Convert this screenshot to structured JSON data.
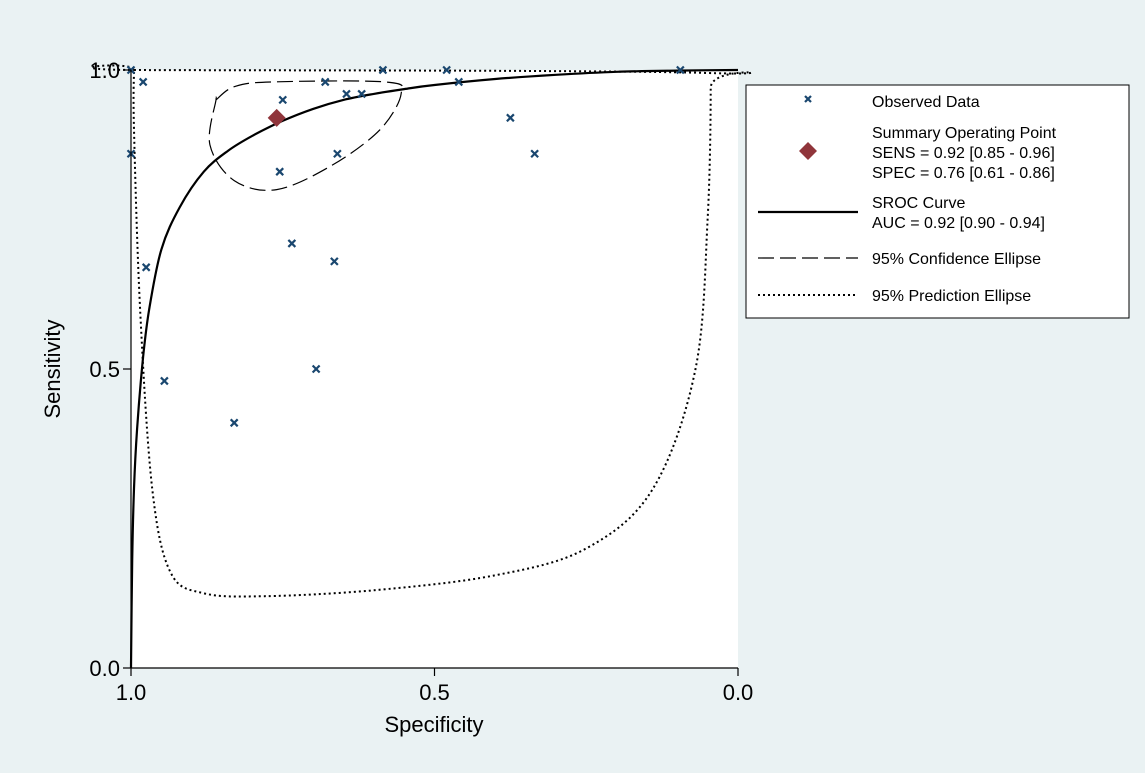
{
  "chart_data": {
    "type": "scatter",
    "xlabel": "Specificity",
    "ylabel": "Sensitivity",
    "xlim": [
      1.0,
      0.0
    ],
    "ylim": [
      0.0,
      1.0
    ],
    "x_axis_reversed": true,
    "x_ticks": [
      "1.0",
      "0.5",
      "0.0"
    ],
    "y_ticks": [
      "0.0",
      "0.5",
      "1.0"
    ],
    "grid": false,
    "legend_placement": "right",
    "colors": {
      "background": "#eaf2f3",
      "plot_area": "#ffffff",
      "observed_marker": "#1a476f",
      "summary_marker": "#90353b",
      "lines": "#000000"
    },
    "observed_data": [
      {
        "spec": 1.0,
        "sens": 1.0
      },
      {
        "spec": 0.98,
        "sens": 0.98
      },
      {
        "spec": 1.0,
        "sens": 0.86
      },
      {
        "spec": 0.975,
        "sens": 0.67
      },
      {
        "spec": 0.945,
        "sens": 0.48
      },
      {
        "spec": 0.83,
        "sens": 0.41
      },
      {
        "spec": 0.75,
        "sens": 0.95
      },
      {
        "spec": 0.755,
        "sens": 0.83
      },
      {
        "spec": 0.735,
        "sens": 0.71
      },
      {
        "spec": 0.695,
        "sens": 0.5
      },
      {
        "spec": 0.68,
        "sens": 0.98
      },
      {
        "spec": 0.66,
        "sens": 0.86
      },
      {
        "spec": 0.665,
        "sens": 0.68
      },
      {
        "spec": 0.645,
        "sens": 0.96
      },
      {
        "spec": 0.62,
        "sens": 0.96
      },
      {
        "spec": 0.585,
        "sens": 1.0
      },
      {
        "spec": 0.48,
        "sens": 1.0
      },
      {
        "spec": 0.46,
        "sens": 0.98
      },
      {
        "spec": 0.375,
        "sens": 0.92
      },
      {
        "spec": 0.335,
        "sens": 0.86
      },
      {
        "spec": 0.095,
        "sens": 1.0
      }
    ],
    "summary_point": {
      "spec": 0.76,
      "sens": 0.92
    },
    "sroc_curve": [
      {
        "spec": 1.0,
        "sens": 0.0
      },
      {
        "spec": 0.998,
        "sens": 0.18
      },
      {
        "spec": 0.995,
        "sens": 0.3
      },
      {
        "spec": 0.99,
        "sens": 0.4
      },
      {
        "spec": 0.98,
        "sens": 0.52
      },
      {
        "spec": 0.97,
        "sens": 0.6
      },
      {
        "spec": 0.95,
        "sens": 0.7
      },
      {
        "spec": 0.92,
        "sens": 0.77
      },
      {
        "spec": 0.88,
        "sens": 0.83
      },
      {
        "spec": 0.84,
        "sens": 0.865
      },
      {
        "spec": 0.8,
        "sens": 0.89
      },
      {
        "spec": 0.75,
        "sens": 0.915
      },
      {
        "spec": 0.7,
        "sens": 0.935
      },
      {
        "spec": 0.65,
        "sens": 0.95
      },
      {
        "spec": 0.6,
        "sens": 0.96
      },
      {
        "spec": 0.55,
        "sens": 0.968
      },
      {
        "spec": 0.5,
        "sens": 0.975
      },
      {
        "spec": 0.4,
        "sens": 0.985
      },
      {
        "spec": 0.3,
        "sens": 0.992
      },
      {
        "spec": 0.2,
        "sens": 0.997
      },
      {
        "spec": 0.1,
        "sens": 0.999
      },
      {
        "spec": 0.0,
        "sens": 1.0
      }
    ],
    "confidence_ellipse": [
      {
        "spec": 0.86,
        "sens": 0.95
      },
      {
        "spec": 0.83,
        "sens": 0.972
      },
      {
        "spec": 0.77,
        "sens": 0.98
      },
      {
        "spec": 0.58,
        "sens": 0.98
      },
      {
        "spec": 0.555,
        "sens": 0.96
      },
      {
        "spec": 0.59,
        "sens": 0.9
      },
      {
        "spec": 0.67,
        "sens": 0.84
      },
      {
        "spec": 0.76,
        "sens": 0.8
      },
      {
        "spec": 0.83,
        "sens": 0.815
      },
      {
        "spec": 0.87,
        "sens": 0.875
      },
      {
        "spec": 0.86,
        "sens": 0.95
      }
    ],
    "prediction_ellipse": [
      {
        "spec": 0.995,
        "sens": 1.0
      },
      {
        "spec": 0.05,
        "sens": 0.995
      },
      {
        "spec": 0.045,
        "sens": 0.97
      },
      {
        "spec": 0.05,
        "sens": 0.75
      },
      {
        "spec": 0.07,
        "sens": 0.5
      },
      {
        "spec": 0.14,
        "sens": 0.3
      },
      {
        "spec": 0.25,
        "sens": 0.2
      },
      {
        "spec": 0.4,
        "sens": 0.155
      },
      {
        "spec": 0.6,
        "sens": 0.13
      },
      {
        "spec": 0.78,
        "sens": 0.12
      },
      {
        "spec": 0.88,
        "sens": 0.125
      },
      {
        "spec": 0.935,
        "sens": 0.16
      },
      {
        "spec": 0.965,
        "sens": 0.3
      },
      {
        "spec": 0.985,
        "sens": 0.6
      },
      {
        "spec": 0.995,
        "sens": 0.9
      },
      {
        "spec": 0.995,
        "sens": 1.0
      }
    ]
  },
  "legend": {
    "observed": "Observed Data",
    "summary_line1": "Summary Operating Point",
    "summary_line2": "SENS = 0.92 [0.85 - 0.96]",
    "summary_line3": "SPEC = 0.76 [0.61 - 0.86]",
    "sroc_line1": "SROC Curve",
    "sroc_line2": "AUC = 0.92 [0.90 - 0.94]",
    "confidence": "95% Confidence Ellipse",
    "prediction": "95% Prediction Ellipse"
  }
}
